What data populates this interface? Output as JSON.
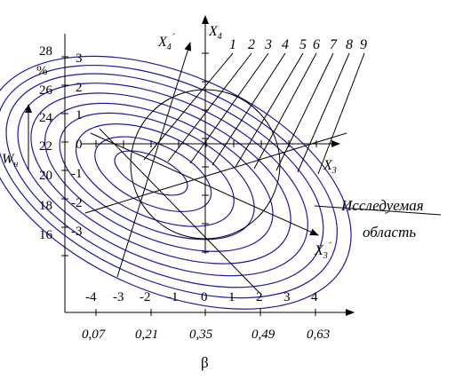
{
  "y_axis": {
    "label": "W",
    "label_sub": "н",
    "unit": "%",
    "ticks": [
      "28",
      "26",
      "24",
      "22",
      "20",
      "18",
      "16"
    ]
  },
  "x3_axis": {
    "label": "X",
    "label_sub": "3",
    "coded_ticks": [
      "-4",
      "-3",
      "-2",
      "-1",
      "0",
      "1",
      "2",
      "3",
      "4"
    ]
  },
  "x4_axis": {
    "label": "X",
    "label_sub": "4",
    "coded_ticks": [
      "3",
      "2",
      "1",
      "0",
      "-1",
      "-2",
      "-3"
    ]
  },
  "x3_prime": {
    "label": "X",
    "label_sub": "3",
    "prime": "´"
  },
  "x4_prime": {
    "label": "X",
    "label_sub": "4",
    "prime": "´"
  },
  "beta_axis": {
    "label": "β",
    "ticks": [
      "0,07",
      "0,21",
      "0,35",
      "0,49",
      "0,63"
    ]
  },
  "contour_labels": [
    "1",
    "2",
    "3",
    "4",
    "5",
    "6",
    "7",
    "8",
    "9"
  ],
  "region_label": {
    "line1": "Исследуемая",
    "line2": "область"
  },
  "colors": {
    "contour": "#1a1aa0",
    "axes": "#000000"
  }
}
